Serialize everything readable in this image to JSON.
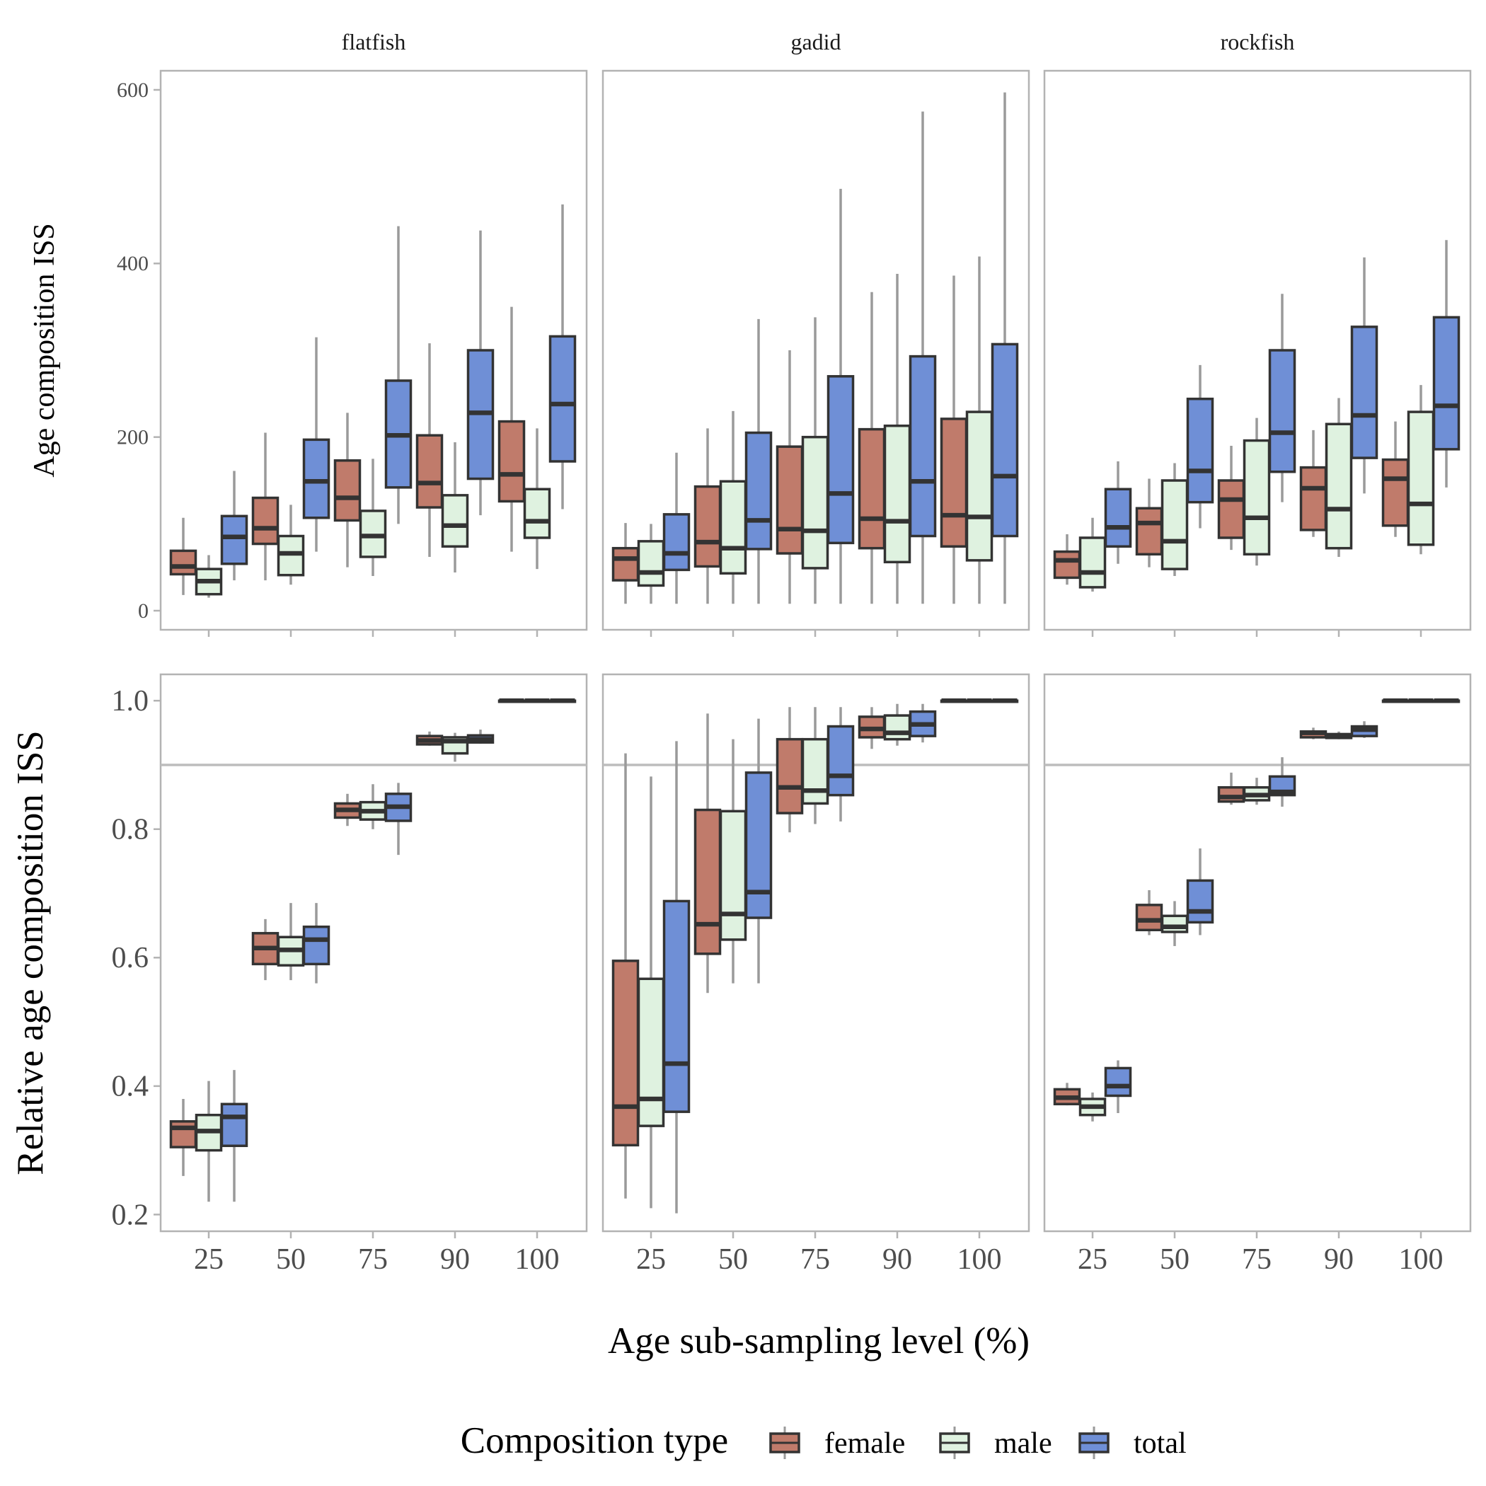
{
  "chart_data": {
    "type": "box",
    "facets": [
      "flatfish",
      "gadid",
      "rockfish"
    ],
    "categories": [
      "25",
      "50",
      "75",
      "90",
      "100"
    ],
    "series_names": [
      "female",
      "male",
      "total"
    ],
    "colors": {
      "female": "#c07b6b",
      "male": "#dff2e0",
      "total": "#6f8fd6",
      "reference_line": "#bdbdbd",
      "panel_border": "#b3b3b3",
      "whisker": "#9a9a9a",
      "box_outline": "#333333"
    },
    "xlabel": "Age sub-sampling level (%)",
    "legend": {
      "title": "Composition type",
      "position": "bottom"
    },
    "rows": [
      {
        "ylabel": "Age composition ISS",
        "ylim": [
          -22,
          622
        ],
        "yticks": [
          0,
          200,
          400,
          600
        ],
        "ytick_labels": [
          "0",
          "200",
          "400",
          "600"
        ],
        "data": {
          "flatfish": {
            "female": [
              [
                18,
                42,
                51,
                69,
                107
              ],
              [
                35,
                77,
                95,
                130,
                205
              ],
              [
                50,
                104,
                130,
                173,
                228
              ],
              [
                62,
                119,
                147,
                202,
                308
              ],
              [
                68,
                126,
                157,
                218,
                350
              ]
            ],
            "male": [
              [
                15,
                19,
                34,
                48,
                64
              ],
              [
                30,
                41,
                66,
                86,
                122
              ],
              [
                40,
                62,
                86,
                115,
                175
              ],
              [
                44,
                74,
                98,
                133,
                194
              ],
              [
                48,
                84,
                103,
                140,
                210
              ]
            ],
            "total": [
              [
                35,
                54,
                85,
                109,
                161
              ],
              [
                68,
                107,
                149,
                197,
                315
              ],
              [
                100,
                142,
                202,
                265,
                443
              ],
              [
                110,
                152,
                228,
                300,
                438
              ],
              [
                117,
                172,
                238,
                316,
                468
              ]
            ]
          },
          "gadid": {
            "female": [
              [
                8,
                35,
                60,
                72,
                101
              ],
              [
                8,
                51,
                79,
                143,
                210
              ],
              [
                8,
                66,
                94,
                189,
                300
              ],
              [
                8,
                72,
                106,
                209,
                367
              ],
              [
                8,
                74,
                110,
                221,
                386
              ]
            ],
            "male": [
              [
                8,
                29,
                44,
                80,
                100
              ],
              [
                8,
                43,
                72,
                149,
                230
              ],
              [
                8,
                49,
                92,
                200,
                338
              ],
              [
                8,
                56,
                103,
                213,
                388
              ],
              [
                8,
                58,
                108,
                229,
                408
              ]
            ],
            "total": [
              [
                8,
                47,
                66,
                111,
                182
              ],
              [
                8,
                71,
                104,
                205,
                336
              ],
              [
                8,
                78,
                135,
                270,
                486
              ],
              [
                8,
                86,
                149,
                293,
                575
              ],
              [
                8,
                86,
                155,
                307,
                597
              ]
            ]
          },
          "rockfish": {
            "female": [
              [
                30,
                38,
                58,
                68,
                88
              ],
              [
                50,
                65,
                101,
                118,
                152
              ],
              [
                70,
                84,
                128,
                150,
                190
              ],
              [
                85,
                93,
                141,
                165,
                208
              ],
              [
                85,
                98,
                152,
                174,
                218
              ]
            ],
            "male": [
              [
                22,
                27,
                44,
                84,
                107
              ],
              [
                40,
                48,
                80,
                150,
                170
              ],
              [
                52,
                65,
                107,
                196,
                222
              ],
              [
                62,
                72,
                117,
                215,
                245
              ],
              [
                65,
                76,
                123,
                229,
                260
              ]
            ],
            "total": [
              [
                54,
                74,
                96,
                140,
                172
              ],
              [
                95,
                125,
                161,
                244,
                283
              ],
              [
                125,
                160,
                205,
                300,
                365
              ],
              [
                135,
                176,
                225,
                327,
                407
              ],
              [
                142,
                186,
                236,
                338,
                427
              ]
            ]
          }
        }
      },
      {
        "ylabel": "Relative age composition ISS",
        "ylim": [
          0.174,
          1.041
        ],
        "yticks": [
          0.2,
          0.4,
          0.6,
          0.8,
          1.0
        ],
        "ytick_labels": [
          "0.2",
          "0.4",
          "0.6",
          "0.8",
          "1.0"
        ],
        "reference_line": 0.9,
        "data": {
          "flatfish": {
            "female": [
              [
                0.26,
                0.305,
                0.335,
                0.345,
                0.38
              ],
              [
                0.565,
                0.59,
                0.615,
                0.638,
                0.66
              ],
              [
                0.805,
                0.818,
                0.83,
                0.84,
                0.855
              ],
              [
                0.93,
                0.932,
                0.938,
                0.945,
                0.952
              ],
              [
                1.0,
                1.0,
                1.0,
                1.0,
                1.0
              ]
            ],
            "male": [
              [
                0.22,
                0.3,
                0.33,
                0.355,
                0.408
              ],
              [
                0.565,
                0.588,
                0.612,
                0.632,
                0.685
              ],
              [
                0.8,
                0.815,
                0.828,
                0.842,
                0.87
              ],
              [
                0.905,
                0.918,
                0.937,
                0.943,
                0.95
              ],
              [
                1.0,
                1.0,
                1.0,
                1.0,
                1.0
              ]
            ],
            "total": [
              [
                0.22,
                0.307,
                0.352,
                0.372,
                0.425
              ],
              [
                0.56,
                0.59,
                0.628,
                0.648,
                0.685
              ],
              [
                0.76,
                0.813,
                0.835,
                0.855,
                0.872
              ],
              [
                0.933,
                0.935,
                0.94,
                0.946,
                0.955
              ],
              [
                1.0,
                1.0,
                1.0,
                1.0,
                1.0
              ]
            ]
          },
          "gadid": {
            "female": [
              [
                0.225,
                0.308,
                0.368,
                0.595,
                0.918
              ],
              [
                0.545,
                0.606,
                0.652,
                0.83,
                0.98
              ],
              [
                0.795,
                0.825,
                0.865,
                0.94,
                0.99
              ],
              [
                0.925,
                0.943,
                0.956,
                0.975,
                0.99
              ],
              [
                1.0,
                1.0,
                1.0,
                1.0,
                1.0
              ]
            ],
            "male": [
              [
                0.21,
                0.338,
                0.38,
                0.567,
                0.882
              ],
              [
                0.56,
                0.628,
                0.668,
                0.828,
                0.94
              ],
              [
                0.808,
                0.84,
                0.86,
                0.94,
                0.99
              ],
              [
                0.93,
                0.94,
                0.95,
                0.977,
                0.995
              ],
              [
                1.0,
                1.0,
                1.0,
                1.0,
                1.0
              ]
            ],
            "total": [
              [
                0.202,
                0.36,
                0.435,
                0.688,
                0.937
              ],
              [
                0.56,
                0.662,
                0.702,
                0.888,
                0.972
              ],
              [
                0.812,
                0.853,
                0.883,
                0.96,
                0.99
              ],
              [
                0.935,
                0.945,
                0.963,
                0.983,
                0.995
              ],
              [
                1.0,
                1.0,
                1.0,
                1.0,
                1.0
              ]
            ]
          },
          "rockfish": {
            "female": [
              [
                0.37,
                0.372,
                0.382,
                0.395,
                0.405
              ],
              [
                0.635,
                0.643,
                0.658,
                0.682,
                0.705
              ],
              [
                0.838,
                0.843,
                0.85,
                0.865,
                0.888
              ],
              [
                0.94,
                0.943,
                0.95,
                0.952,
                0.958
              ],
              [
                1.0,
                1.0,
                1.0,
                1.0,
                1.0
              ]
            ],
            "male": [
              [
                0.345,
                0.355,
                0.368,
                0.38,
                0.39
              ],
              [
                0.618,
                0.64,
                0.648,
                0.665,
                0.688
              ],
              [
                0.838,
                0.845,
                0.853,
                0.865,
                0.88
              ],
              [
                0.94,
                0.942,
                0.945,
                0.948,
                0.952
              ],
              [
                1.0,
                1.0,
                1.0,
                1.0,
                1.0
              ]
            ],
            "total": [
              [
                0.358,
                0.385,
                0.4,
                0.428,
                0.44
              ],
              [
                0.635,
                0.655,
                0.672,
                0.72,
                0.77
              ],
              [
                0.835,
                0.853,
                0.858,
                0.882,
                0.912
              ],
              [
                0.942,
                0.945,
                0.955,
                0.96,
                0.968
              ],
              [
                1.0,
                1.0,
                1.0,
                1.0,
                1.0
              ]
            ]
          }
        }
      }
    ]
  }
}
